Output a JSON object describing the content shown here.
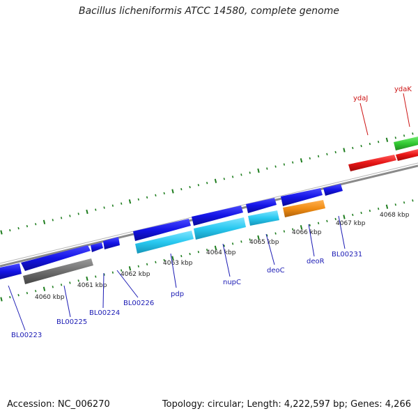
{
  "title": "Bacillus licheniformis ATCC 14580, complete genome",
  "footer": {
    "accession": "Accession: NC_006270",
    "topology": "Topology: circular; Length: 4,222,597 bp; Genes: 4,266"
  },
  "colors": {
    "backbone": "#8a8a8a",
    "tick": "#1e7d1e",
    "forward_gene": "#1414e6",
    "reverse_gene": "#e61414",
    "cds_cyan": "#28c8f0",
    "cds_orange": "#f08c14",
    "cds_gray": "#6e6e6e",
    "cds_green": "#32c832",
    "label_blue": "#1a1ab4",
    "label_red": "#cc1111"
  },
  "ticks": [
    {
      "label": "4060 kbp"
    },
    {
      "label": "4061 kbp"
    },
    {
      "label": "4062 kbp"
    },
    {
      "label": "4063 kbp"
    },
    {
      "label": "4064 kbp"
    },
    {
      "label": "4065 kbp"
    },
    {
      "label": "4066 kbp"
    },
    {
      "label": "4067 kbp"
    },
    {
      "label": "4068 kbp"
    }
  ],
  "gene_labels": [
    {
      "id": "BL00223",
      "text": "BL00223",
      "strand": "forward"
    },
    {
      "id": "BL00225",
      "text": "BL00225",
      "strand": "forward"
    },
    {
      "id": "BL00224",
      "text": "BL00224",
      "strand": "forward"
    },
    {
      "id": "BL00226",
      "text": "BL00226",
      "strand": "forward"
    },
    {
      "id": "pdp",
      "text": "pdp",
      "strand": "forward"
    },
    {
      "id": "nupC",
      "text": "nupC",
      "strand": "forward"
    },
    {
      "id": "deoC",
      "text": "deoC",
      "strand": "forward"
    },
    {
      "id": "deoR",
      "text": "deoR",
      "strand": "forward"
    },
    {
      "id": "BL00231",
      "text": "BL00231",
      "strand": "forward"
    },
    {
      "id": "ydaJ",
      "text": "ydaJ",
      "strand": "reverse"
    },
    {
      "id": "ydaK",
      "text": "ydaK",
      "strand": "reverse"
    }
  ]
}
